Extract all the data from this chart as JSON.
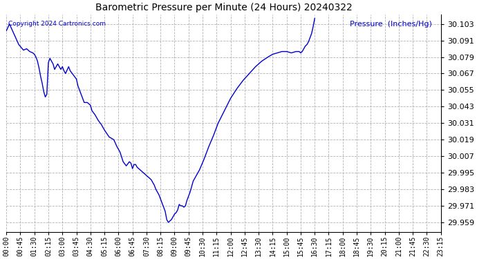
{
  "title": "Barometric Pressure per Minute (24 Hours) 20240322",
  "ylabel": "Pressure  (Inches/Hg)",
  "copyright_text": "Copyright 2024 Cartronics.com",
  "line_color": "#0000cc",
  "background_color": "#ffffff",
  "grid_color": "#aaaaaa",
  "title_color": "#000000",
  "ylabel_color": "#0000cc",
  "copyright_color": "#0000cc",
  "yticks": [
    29.959,
    29.971,
    29.983,
    29.995,
    30.007,
    30.019,
    30.031,
    30.043,
    30.055,
    30.067,
    30.079,
    30.091,
    30.103
  ],
  "ylim": [
    29.952,
    30.11
  ],
  "xtick_labels": [
    "00:00",
    "00:45",
    "01:30",
    "02:15",
    "03:00",
    "03:45",
    "04:30",
    "05:15",
    "06:00",
    "06:45",
    "07:30",
    "08:15",
    "09:00",
    "09:45",
    "10:30",
    "11:15",
    "12:00",
    "12:45",
    "13:30",
    "14:15",
    "15:00",
    "15:45",
    "16:30",
    "17:15",
    "18:00",
    "18:45",
    "19:30",
    "20:15",
    "21:00",
    "21:45",
    "22:30",
    "23:15"
  ],
  "curve_points": [
    [
      0,
      30.098
    ],
    [
      10,
      30.103
    ],
    [
      20,
      30.098
    ],
    [
      30,
      30.093
    ],
    [
      40,
      30.088
    ],
    [
      55,
      30.084
    ],
    [
      65,
      30.085
    ],
    [
      75,
      30.083
    ],
    [
      85,
      30.082
    ],
    [
      90,
      30.081
    ],
    [
      95,
      30.079
    ],
    [
      100,
      30.076
    ],
    [
      105,
      30.071
    ],
    [
      110,
      30.065
    ],
    [
      115,
      30.06
    ],
    [
      120,
      30.054
    ],
    [
      125,
      30.05
    ],
    [
      130,
      30.052
    ],
    [
      135,
      30.075
    ],
    [
      140,
      30.078
    ],
    [
      145,
      30.076
    ],
    [
      150,
      30.074
    ],
    [
      155,
      30.07
    ],
    [
      160,
      30.072
    ],
    [
      165,
      30.074
    ],
    [
      170,
      30.072
    ],
    [
      175,
      30.07
    ],
    [
      180,
      30.072
    ],
    [
      185,
      30.069
    ],
    [
      190,
      30.067
    ],
    [
      200,
      30.072
    ],
    [
      205,
      30.069
    ],
    [
      215,
      30.066
    ],
    [
      225,
      30.063
    ],
    [
      230,
      30.058
    ],
    [
      240,
      30.052
    ],
    [
      250,
      30.046
    ],
    [
      260,
      30.046
    ],
    [
      270,
      30.044
    ],
    [
      275,
      30.04
    ],
    [
      285,
      30.037
    ],
    [
      295,
      30.033
    ],
    [
      305,
      30.03
    ],
    [
      315,
      30.026
    ],
    [
      330,
      30.021
    ],
    [
      345,
      30.019
    ],
    [
      355,
      30.014
    ],
    [
      365,
      30.01
    ],
    [
      375,
      30.003
    ],
    [
      385,
      30.0
    ],
    [
      395,
      30.003
    ],
    [
      400,
      30.002
    ],
    [
      405,
      29.998
    ],
    [
      410,
      30.001
    ],
    [
      415,
      30.001
    ],
    [
      420,
      29.999
    ],
    [
      430,
      29.997
    ],
    [
      440,
      29.995
    ],
    [
      445,
      29.994
    ],
    [
      450,
      29.993
    ],
    [
      455,
      29.992
    ],
    [
      460,
      29.991
    ],
    [
      465,
      29.99
    ],
    [
      470,
      29.988
    ],
    [
      475,
      29.986
    ],
    [
      480,
      29.983
    ],
    [
      490,
      29.979
    ],
    [
      500,
      29.973
    ],
    [
      510,
      29.967
    ],
    [
      515,
      29.961
    ],
    [
      520,
      29.959
    ],
    [
      525,
      29.96
    ],
    [
      530,
      29.961
    ],
    [
      535,
      29.963
    ],
    [
      540,
      29.965
    ],
    [
      545,
      29.966
    ],
    [
      550,
      29.968
    ],
    [
      555,
      29.972
    ],
    [
      560,
      29.971
    ],
    [
      565,
      29.971
    ],
    [
      570,
      29.97
    ],
    [
      575,
      29.971
    ],
    [
      580,
      29.975
    ],
    [
      590,
      29.981
    ],
    [
      600,
      29.989
    ],
    [
      620,
      29.997
    ],
    [
      635,
      30.005
    ],
    [
      650,
      30.014
    ],
    [
      665,
      30.022
    ],
    [
      680,
      30.031
    ],
    [
      700,
      30.04
    ],
    [
      720,
      30.049
    ],
    [
      740,
      30.056
    ],
    [
      760,
      30.062
    ],
    [
      780,
      30.067
    ],
    [
      800,
      30.072
    ],
    [
      820,
      30.076
    ],
    [
      840,
      30.079
    ],
    [
      855,
      30.081
    ],
    [
      870,
      30.082
    ],
    [
      885,
      30.083
    ],
    [
      900,
      30.083
    ],
    [
      915,
      30.082
    ],
    [
      930,
      30.083
    ],
    [
      940,
      30.083
    ],
    [
      945,
      30.082
    ],
    [
      950,
      30.083
    ],
    [
      955,
      30.085
    ],
    [
      960,
      30.087
    ],
    [
      965,
      30.088
    ],
    [
      970,
      30.09
    ],
    [
      975,
      30.093
    ],
    [
      980,
      30.096
    ],
    [
      985,
      30.101
    ],
    [
      990,
      30.107
    ]
  ]
}
